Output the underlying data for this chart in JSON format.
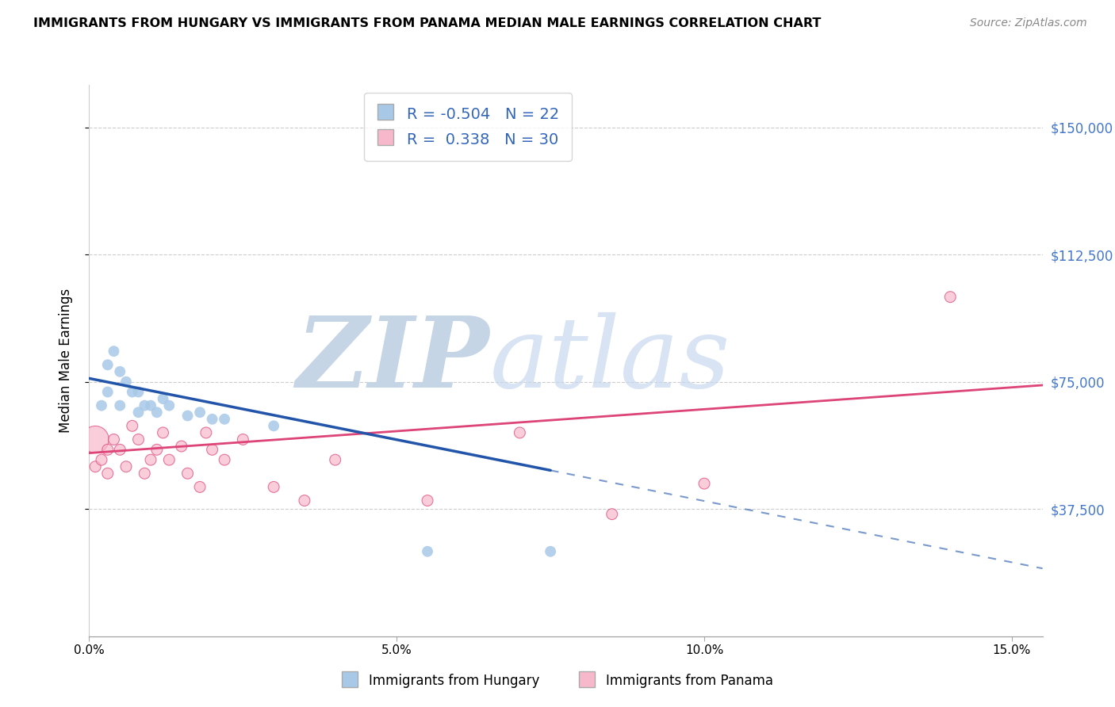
{
  "title": "IMMIGRANTS FROM HUNGARY VS IMMIGRANTS FROM PANAMA MEDIAN MALE EARNINGS CORRELATION CHART",
  "source": "Source: ZipAtlas.com",
  "ylabel": "Median Male Earnings",
  "xlim": [
    0.0,
    0.155
  ],
  "ylim": [
    0,
    162500
  ],
  "xtick_labels": [
    "0.0%",
    "5.0%",
    "10.0%",
    "15.0%"
  ],
  "xtick_positions": [
    0.0,
    0.05,
    0.1,
    0.15
  ],
  "ytick_labels": [
    "$37,500",
    "$75,000",
    "$112,500",
    "$150,000"
  ],
  "ytick_positions": [
    37500,
    75000,
    112500,
    150000
  ],
  "hungary_R": -0.504,
  "hungary_N": 22,
  "panama_R": 0.338,
  "panama_N": 30,
  "hungary_color": "#a8c8e8",
  "hungary_line_color": "#2255aa",
  "panama_color": "#f8b8cc",
  "panama_line_color": "#dd4477",
  "watermark_zip_color": "#c8d8e8",
  "watermark_atlas_color": "#ccd8e8",
  "background_color": "#ffffff",
  "hungary_x": [
    0.002,
    0.003,
    0.003,
    0.004,
    0.005,
    0.005,
    0.006,
    0.007,
    0.008,
    0.008,
    0.009,
    0.01,
    0.011,
    0.012,
    0.013,
    0.016,
    0.018,
    0.02,
    0.022,
    0.03,
    0.055,
    0.075
  ],
  "hungary_y": [
    68000,
    80000,
    72000,
    84000,
    78000,
    68000,
    75000,
    72000,
    72000,
    66000,
    68000,
    68000,
    66000,
    70000,
    68000,
    65000,
    66000,
    64000,
    64000,
    62000,
    25000,
    25000
  ],
  "hungary_sizes": [
    100,
    100,
    100,
    100,
    100,
    100,
    100,
    100,
    100,
    100,
    100,
    100,
    100,
    100,
    100,
    100,
    100,
    100,
    100,
    100,
    100,
    100
  ],
  "panama_x": [
    0.001,
    0.001,
    0.002,
    0.003,
    0.003,
    0.004,
    0.005,
    0.006,
    0.007,
    0.008,
    0.009,
    0.01,
    0.011,
    0.012,
    0.013,
    0.015,
    0.016,
    0.018,
    0.019,
    0.02,
    0.022,
    0.025,
    0.03,
    0.035,
    0.04,
    0.055,
    0.07,
    0.085,
    0.1,
    0.14
  ],
  "panama_y": [
    58000,
    50000,
    52000,
    48000,
    55000,
    58000,
    55000,
    50000,
    62000,
    58000,
    48000,
    52000,
    55000,
    60000,
    52000,
    56000,
    48000,
    44000,
    60000,
    55000,
    52000,
    58000,
    44000,
    40000,
    52000,
    40000,
    60000,
    36000,
    45000,
    100000
  ],
  "panama_sizes": [
    600,
    100,
    100,
    100,
    100,
    100,
    100,
    100,
    100,
    100,
    100,
    100,
    100,
    100,
    100,
    100,
    100,
    100,
    100,
    100,
    100,
    100,
    100,
    100,
    100,
    100,
    100,
    100,
    100,
    100
  ],
  "hungary_line_x0": 0.0,
  "hungary_line_x1": 0.155,
  "hungary_line_y0": 76000,
  "hungary_line_y1": 20000,
  "panama_line_x0": 0.0,
  "panama_line_x1": 0.155,
  "panama_line_y0": 54000,
  "panama_line_y1": 74000
}
